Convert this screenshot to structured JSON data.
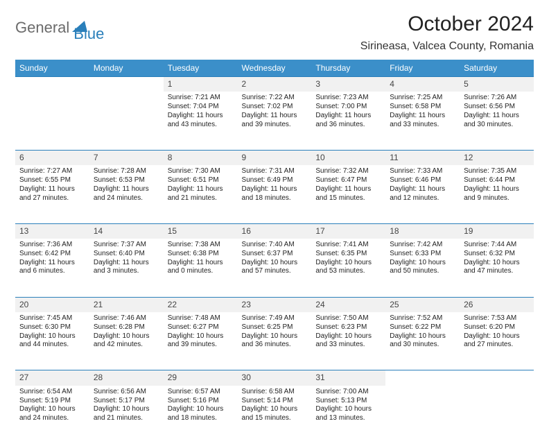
{
  "logo": {
    "text1": "General",
    "text2": "Blue",
    "color_gray": "#6b6b6b",
    "color_blue": "#2a7fba"
  },
  "header": {
    "month_title": "October 2024",
    "location": "Sirineasa, Valcea County, Romania"
  },
  "colors": {
    "header_bg": "#3b8fc9",
    "header_fg": "#ffffff",
    "daynum_bg": "#f1f1f1",
    "divider": "#2a7fba"
  },
  "weekdays": [
    "Sunday",
    "Monday",
    "Tuesday",
    "Wednesday",
    "Thursday",
    "Friday",
    "Saturday"
  ],
  "weeks": [
    [
      null,
      null,
      {
        "n": "1",
        "sr": "Sunrise: 7:21 AM",
        "ss": "Sunset: 7:04 PM",
        "d1": "Daylight: 11 hours",
        "d2": "and 43 minutes."
      },
      {
        "n": "2",
        "sr": "Sunrise: 7:22 AM",
        "ss": "Sunset: 7:02 PM",
        "d1": "Daylight: 11 hours",
        "d2": "and 39 minutes."
      },
      {
        "n": "3",
        "sr": "Sunrise: 7:23 AM",
        "ss": "Sunset: 7:00 PM",
        "d1": "Daylight: 11 hours",
        "d2": "and 36 minutes."
      },
      {
        "n": "4",
        "sr": "Sunrise: 7:25 AM",
        "ss": "Sunset: 6:58 PM",
        "d1": "Daylight: 11 hours",
        "d2": "and 33 minutes."
      },
      {
        "n": "5",
        "sr": "Sunrise: 7:26 AM",
        "ss": "Sunset: 6:56 PM",
        "d1": "Daylight: 11 hours",
        "d2": "and 30 minutes."
      }
    ],
    [
      {
        "n": "6",
        "sr": "Sunrise: 7:27 AM",
        "ss": "Sunset: 6:55 PM",
        "d1": "Daylight: 11 hours",
        "d2": "and 27 minutes."
      },
      {
        "n": "7",
        "sr": "Sunrise: 7:28 AM",
        "ss": "Sunset: 6:53 PM",
        "d1": "Daylight: 11 hours",
        "d2": "and 24 minutes."
      },
      {
        "n": "8",
        "sr": "Sunrise: 7:30 AM",
        "ss": "Sunset: 6:51 PM",
        "d1": "Daylight: 11 hours",
        "d2": "and 21 minutes."
      },
      {
        "n": "9",
        "sr": "Sunrise: 7:31 AM",
        "ss": "Sunset: 6:49 PM",
        "d1": "Daylight: 11 hours",
        "d2": "and 18 minutes."
      },
      {
        "n": "10",
        "sr": "Sunrise: 7:32 AM",
        "ss": "Sunset: 6:47 PM",
        "d1": "Daylight: 11 hours",
        "d2": "and 15 minutes."
      },
      {
        "n": "11",
        "sr": "Sunrise: 7:33 AM",
        "ss": "Sunset: 6:46 PM",
        "d1": "Daylight: 11 hours",
        "d2": "and 12 minutes."
      },
      {
        "n": "12",
        "sr": "Sunrise: 7:35 AM",
        "ss": "Sunset: 6:44 PM",
        "d1": "Daylight: 11 hours",
        "d2": "and 9 minutes."
      }
    ],
    [
      {
        "n": "13",
        "sr": "Sunrise: 7:36 AM",
        "ss": "Sunset: 6:42 PM",
        "d1": "Daylight: 11 hours",
        "d2": "and 6 minutes."
      },
      {
        "n": "14",
        "sr": "Sunrise: 7:37 AM",
        "ss": "Sunset: 6:40 PM",
        "d1": "Daylight: 11 hours",
        "d2": "and 3 minutes."
      },
      {
        "n": "15",
        "sr": "Sunrise: 7:38 AM",
        "ss": "Sunset: 6:38 PM",
        "d1": "Daylight: 11 hours",
        "d2": "and 0 minutes."
      },
      {
        "n": "16",
        "sr": "Sunrise: 7:40 AM",
        "ss": "Sunset: 6:37 PM",
        "d1": "Daylight: 10 hours",
        "d2": "and 57 minutes."
      },
      {
        "n": "17",
        "sr": "Sunrise: 7:41 AM",
        "ss": "Sunset: 6:35 PM",
        "d1": "Daylight: 10 hours",
        "d2": "and 53 minutes."
      },
      {
        "n": "18",
        "sr": "Sunrise: 7:42 AM",
        "ss": "Sunset: 6:33 PM",
        "d1": "Daylight: 10 hours",
        "d2": "and 50 minutes."
      },
      {
        "n": "19",
        "sr": "Sunrise: 7:44 AM",
        "ss": "Sunset: 6:32 PM",
        "d1": "Daylight: 10 hours",
        "d2": "and 47 minutes."
      }
    ],
    [
      {
        "n": "20",
        "sr": "Sunrise: 7:45 AM",
        "ss": "Sunset: 6:30 PM",
        "d1": "Daylight: 10 hours",
        "d2": "and 44 minutes."
      },
      {
        "n": "21",
        "sr": "Sunrise: 7:46 AM",
        "ss": "Sunset: 6:28 PM",
        "d1": "Daylight: 10 hours",
        "d2": "and 42 minutes."
      },
      {
        "n": "22",
        "sr": "Sunrise: 7:48 AM",
        "ss": "Sunset: 6:27 PM",
        "d1": "Daylight: 10 hours",
        "d2": "and 39 minutes."
      },
      {
        "n": "23",
        "sr": "Sunrise: 7:49 AM",
        "ss": "Sunset: 6:25 PM",
        "d1": "Daylight: 10 hours",
        "d2": "and 36 minutes."
      },
      {
        "n": "24",
        "sr": "Sunrise: 7:50 AM",
        "ss": "Sunset: 6:23 PM",
        "d1": "Daylight: 10 hours",
        "d2": "and 33 minutes."
      },
      {
        "n": "25",
        "sr": "Sunrise: 7:52 AM",
        "ss": "Sunset: 6:22 PM",
        "d1": "Daylight: 10 hours",
        "d2": "and 30 minutes."
      },
      {
        "n": "26",
        "sr": "Sunrise: 7:53 AM",
        "ss": "Sunset: 6:20 PM",
        "d1": "Daylight: 10 hours",
        "d2": "and 27 minutes."
      }
    ],
    [
      {
        "n": "27",
        "sr": "Sunrise: 6:54 AM",
        "ss": "Sunset: 5:19 PM",
        "d1": "Daylight: 10 hours",
        "d2": "and 24 minutes."
      },
      {
        "n": "28",
        "sr": "Sunrise: 6:56 AM",
        "ss": "Sunset: 5:17 PM",
        "d1": "Daylight: 10 hours",
        "d2": "and 21 minutes."
      },
      {
        "n": "29",
        "sr": "Sunrise: 6:57 AM",
        "ss": "Sunset: 5:16 PM",
        "d1": "Daylight: 10 hours",
        "d2": "and 18 minutes."
      },
      {
        "n": "30",
        "sr": "Sunrise: 6:58 AM",
        "ss": "Sunset: 5:14 PM",
        "d1": "Daylight: 10 hours",
        "d2": "and 15 minutes."
      },
      {
        "n": "31",
        "sr": "Sunrise: 7:00 AM",
        "ss": "Sunset: 5:13 PM",
        "d1": "Daylight: 10 hours",
        "d2": "and 13 minutes."
      },
      null,
      null
    ]
  ]
}
